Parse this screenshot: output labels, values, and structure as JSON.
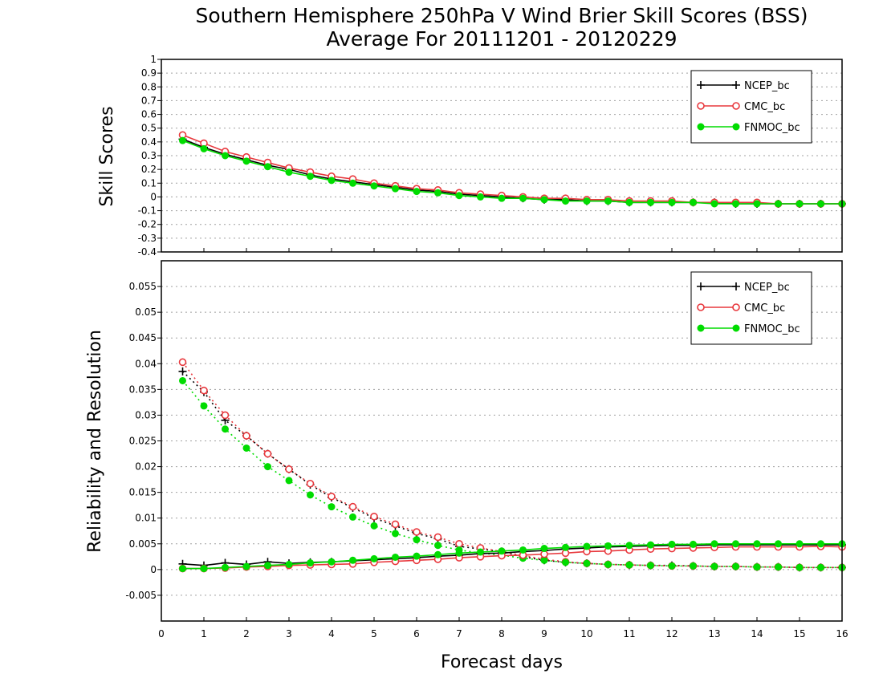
{
  "chart_data": {
    "type": "line",
    "title": [
      "Southern Hemisphere 250hPa V Wind Brier Skill Scores (BSS)",
      "Average For 20111201 - 20120229"
    ],
    "xlabel": "Forecast days",
    "xlim": [
      0,
      16
    ],
    "xticks": [
      "0",
      "1",
      "2",
      "3",
      "4",
      "5",
      "6",
      "7",
      "8",
      "9",
      "10",
      "11",
      "12",
      "13",
      "14",
      "15",
      "16"
    ],
    "panels": [
      {
        "ylabel": "Skill Scores",
        "ylim": [
          -0.4,
          1
        ],
        "yticks": [
          "-0.4",
          "-0.3",
          "-0.2",
          "-0.1",
          "0",
          "0.1",
          "0.2",
          "0.3",
          "0.4",
          "0.5",
          "0.6",
          "0.7",
          "0.8",
          "0.9",
          "1"
        ],
        "grid": true,
        "legend_position": "top-right",
        "x": [
          0.5,
          1,
          1.5,
          2,
          2.5,
          3,
          3.5,
          4,
          4.5,
          5,
          5.5,
          6,
          6.5,
          7,
          7.5,
          8,
          8.5,
          9,
          9.5,
          10,
          10.5,
          11,
          11.5,
          12,
          12.5,
          13,
          13.5,
          14,
          14.5,
          15,
          15.5,
          16
        ],
        "series": [
          {
            "name": "NCEP_bc",
            "color": "#000000",
            "marker": "plus",
            "style": "solid",
            "values": [
              0.42,
              0.36,
              0.31,
              0.27,
              0.23,
              0.2,
              0.16,
              0.13,
              0.11,
              0.09,
              0.07,
              0.05,
              0.04,
              0.02,
              0.01,
              0,
              -0.01,
              -0.02,
              -0.02,
              -0.03,
              -0.03,
              -0.04,
              -0.04,
              -0.04,
              -0.04,
              -0.04,
              -0.05,
              -0.05,
              -0.05,
              -0.05,
              -0.05,
              -0.05
            ]
          },
          {
            "name": "CMC_bc",
            "color": "#e8383d",
            "marker": "circle-open",
            "style": "solid",
            "values": [
              0.45,
              0.39,
              0.33,
              0.29,
              0.25,
              0.21,
              0.18,
              0.15,
              0.13,
              0.1,
              0.08,
              0.06,
              0.05,
              0.03,
              0.02,
              0.01,
              0,
              -0.01,
              -0.01,
              -0.02,
              -0.02,
              -0.03,
              -0.03,
              -0.03,
              -0.04,
              -0.04,
              -0.04,
              -0.04,
              -0.05,
              -0.05,
              -0.05,
              -0.05
            ]
          },
          {
            "name": "FNMOC_bc",
            "color": "#00dc00",
            "marker": "circle-filled",
            "style": "solid",
            "values": [
              0.41,
              0.35,
              0.3,
              0.26,
              0.22,
              0.18,
              0.15,
              0.12,
              0.1,
              0.08,
              0.06,
              0.04,
              0.03,
              0.01,
              0,
              -0.01,
              -0.01,
              -0.02,
              -0.03,
              -0.03,
              -0.03,
              -0.04,
              -0.04,
              -0.04,
              -0.04,
              -0.05,
              -0.05,
              -0.05,
              -0.05,
              -0.05,
              -0.05,
              -0.05
            ]
          }
        ]
      },
      {
        "ylabel": "Reliability and Resolution",
        "ylim": [
          -0.01,
          0.06
        ],
        "yticks": [
          "-0.005",
          "0",
          "0.005",
          "0.01",
          "0.015",
          "0.02",
          "0.025",
          "0.03",
          "0.035",
          "0.04",
          "0.045",
          "0.05",
          "0.055"
        ],
        "grid": true,
        "legend_position": "top-right",
        "x": [
          0.5,
          1,
          1.5,
          2,
          2.5,
          3,
          3.5,
          4,
          4.5,
          5,
          5.5,
          6,
          6.5,
          7,
          7.5,
          8,
          8.5,
          9,
          9.5,
          10,
          10.5,
          11,
          11.5,
          12,
          12.5,
          13,
          13.5,
          14,
          14.5,
          15,
          15.5,
          16
        ],
        "series": [
          {
            "name": "NCEP_bc",
            "color": "#000000",
            "marker": "plus",
            "style": "dotted",
            "values": [
              0.0385,
              0.0345,
              0.029,
              0.026,
              0.0225,
              0.0195,
              0.0165,
              0.014,
              0.012,
              0.01,
              0.0085,
              0.007,
              0.006,
              0.0045,
              0.004,
              0.0035,
              0.0025,
              0.0018,
              0.0014,
              0.0012,
              0.001,
              0.0009,
              0.0008,
              0.0008,
              0.0007,
              0.0006,
              0.0006,
              0.0005,
              0.0005,
              0.0004,
              0.0004,
              0.0004
            ]
          },
          {
            "name": "CMC_bc",
            "color": "#e8383d",
            "marker": "circle-open",
            "style": "dotted",
            "values": [
              0.0403,
              0.0348,
              0.03,
              0.026,
              0.0225,
              0.0195,
              0.0167,
              0.0142,
              0.0122,
              0.0103,
              0.0088,
              0.0073,
              0.0063,
              0.005,
              0.0042,
              0.0035,
              0.0027,
              0.002,
              0.0015,
              0.0012,
              0.001,
              0.0009,
              0.0008,
              0.0007,
              0.0007,
              0.0006,
              0.0006,
              0.0005,
              0.0005,
              0.0004,
              0.0004,
              0.0004
            ]
          },
          {
            "name": "FNMOC_bc",
            "color": "#00dc00",
            "marker": "circle-filled",
            "style": "dotted",
            "values": [
              0.0367,
              0.0318,
              0.0273,
              0.0236,
              0.02,
              0.0173,
              0.0145,
              0.0122,
              0.0102,
              0.0085,
              0.007,
              0.0058,
              0.0047,
              0.0038,
              0.0032,
              0.0028,
              0.0022,
              0.0018,
              0.0014,
              0.0012,
              0.001,
              0.0009,
              0.0008,
              0.0007,
              0.0007,
              0.0006,
              0.0006,
              0.0005,
              0.0005,
              0.0004,
              0.0004,
              0.0004
            ]
          },
          {
            "name": "NCEP_bc",
            "color": "#000000",
            "marker": "plus",
            "style": "solid",
            "values": [
              0.0011,
              0.0008,
              0.0013,
              0.001,
              0.0015,
              0.0012,
              0.0014,
              0.0015,
              0.0017,
              0.0019,
              0.0021,
              0.0023,
              0.0026,
              0.0028,
              0.0031,
              0.0032,
              0.0035,
              0.0037,
              0.004,
              0.0042,
              0.0044,
              0.0045,
              0.0046,
              0.0047,
              0.0047,
              0.0048,
              0.0048,
              0.0048,
              0.0048,
              0.0048,
              0.0048,
              0.0048
            ]
          },
          {
            "name": "CMC_bc",
            "color": "#e8383d",
            "marker": "circle-open",
            "style": "solid",
            "values": [
              0.0002,
              0.0002,
              0.0003,
              0.0005,
              0.0006,
              0.0008,
              0.0009,
              0.001,
              0.0011,
              0.0014,
              0.0016,
              0.0018,
              0.002,
              0.0023,
              0.0025,
              0.0027,
              0.0028,
              0.003,
              0.0032,
              0.0035,
              0.0036,
              0.0038,
              0.004,
              0.0041,
              0.0042,
              0.0043,
              0.0044,
              0.0044,
              0.0044,
              0.0044,
              0.0045,
              0.0044
            ]
          },
          {
            "name": "FNMOC_bc",
            "color": "#00dc00",
            "marker": "circle-filled",
            "style": "solid",
            "values": [
              0.0002,
              0.0002,
              0.0004,
              0.0006,
              0.0008,
              0.001,
              0.0013,
              0.0015,
              0.0018,
              0.0021,
              0.0024,
              0.0026,
              0.0029,
              0.0032,
              0.0034,
              0.0036,
              0.0038,
              0.0041,
              0.0043,
              0.0045,
              0.0046,
              0.0047,
              0.0048,
              0.0049,
              0.0049,
              0.005,
              0.005,
              0.005,
              0.005,
              0.005,
              0.005,
              0.005
            ]
          }
        ]
      }
    ]
  }
}
